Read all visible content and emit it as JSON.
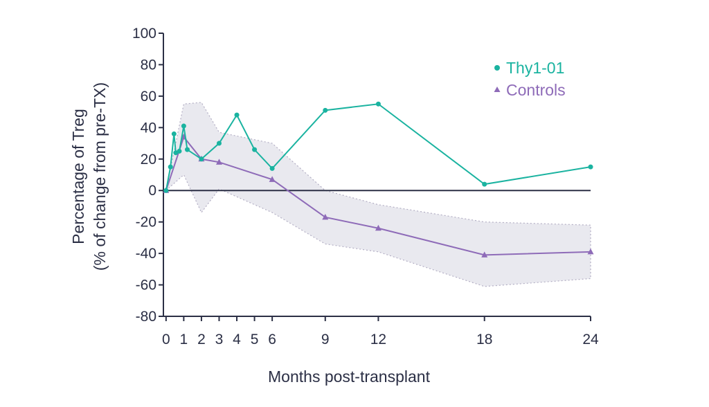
{
  "chart_data": {
    "type": "line",
    "xlabel": "Months post-transplant",
    "ylabel_line1": "Percentage of Treg",
    "ylabel_line2": "(% of change from pre-TX)",
    "xlim": [
      -0.15,
      24
    ],
    "ylim": [
      -80,
      100
    ],
    "x_ticks": [
      0,
      1,
      2,
      3,
      4,
      5,
      6,
      9,
      12,
      18,
      24
    ],
    "y_ticks": [
      -80,
      -60,
      -40,
      -20,
      0,
      20,
      40,
      60,
      80,
      100
    ],
    "grid": false,
    "zero_line": true,
    "legend_position": "top-right",
    "series": [
      {
        "name": "Thy1-01",
        "color": "#1ab3a0",
        "marker": "circle",
        "points": [
          [
            0,
            0
          ],
          [
            0.25,
            15
          ],
          [
            0.45,
            36
          ],
          [
            0.55,
            24
          ],
          [
            0.75,
            25
          ],
          [
            1,
            41
          ],
          [
            1.2,
            26
          ],
          [
            2,
            20
          ],
          [
            3,
            30
          ],
          [
            4,
            48
          ],
          [
            5,
            26
          ],
          [
            6,
            14
          ],
          [
            9,
            51
          ],
          [
            12,
            55
          ],
          [
            18,
            4
          ],
          [
            24,
            15
          ]
        ]
      },
      {
        "name": "Controls",
        "color": "#8e6bb8",
        "marker": "triangle",
        "points": [
          [
            0,
            0
          ],
          [
            1,
            34
          ],
          [
            2,
            20
          ],
          [
            3,
            18
          ],
          [
            6,
            7
          ],
          [
            9,
            -17
          ],
          [
            12,
            -24
          ],
          [
            18,
            -41
          ],
          [
            24,
            -39
          ]
        ]
      }
    ],
    "confidence_band": {
      "series": "Controls",
      "fill": "#e9e9ef",
      "stroke": "#b3aec4",
      "upper": [
        [
          0,
          0
        ],
        [
          1,
          55
        ],
        [
          2,
          56
        ],
        [
          3,
          37
        ],
        [
          6,
          30
        ],
        [
          9,
          0
        ],
        [
          12,
          -9
        ],
        [
          18,
          -20
        ],
        [
          24,
          -22
        ]
      ],
      "lower": [
        [
          0,
          0
        ],
        [
          1,
          10
        ],
        [
          2,
          -14
        ],
        [
          3,
          1
        ],
        [
          6,
          -14
        ],
        [
          9,
          -34
        ],
        [
          12,
          -39
        ],
        [
          18,
          -61
        ],
        [
          24,
          -56
        ]
      ]
    }
  },
  "colors": {
    "axis": "#2b2f45",
    "text": "#2b2f45"
  }
}
